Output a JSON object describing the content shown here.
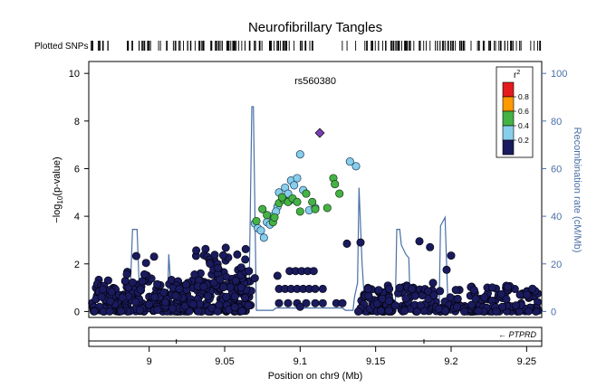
{
  "chart_data": {
    "type": "scatter",
    "title": "Neurofibrillary Tangles",
    "snp_track_label": "Plotted SNPs",
    "lead_snp_label": "rs560380",
    "xlabel": "Position on chr9 (Mb)",
    "ylabel_prefix": "−log",
    "ylabel_sub": "10",
    "ylabel_suffix": "(p-value)",
    "y2label": "Recombination rate (cM/Mb)",
    "xlim": [
      8.96,
      9.26
    ],
    "ylim": [
      -0.25,
      10.5
    ],
    "y2lim": [
      -2.5,
      105
    ],
    "x_ticks": [
      "9",
      "9.05",
      "9.1",
      "9.15",
      "9.2",
      "9.25"
    ],
    "x_tick_values": [
      9.0,
      9.05,
      9.1,
      9.15,
      9.2,
      9.25
    ],
    "y_ticks": [
      "0",
      "2",
      "4",
      "6",
      "8",
      "10"
    ],
    "y_tick_values": [
      0,
      2,
      4,
      6,
      8,
      10
    ],
    "y2_ticks": [
      "0",
      "20",
      "40",
      "60",
      "80",
      "100"
    ],
    "y2_tick_values": [
      0,
      20,
      40,
      60,
      80,
      100
    ],
    "legend": {
      "title_r": "r",
      "title_sup": "2",
      "labels": [
        "0.8",
        "0.6",
        "0.4",
        "0.2"
      ],
      "label_values": [
        0.8,
        0.6,
        0.4,
        0.2
      ],
      "colors": [
        "#e41a1c",
        "#ff9900",
        "#44b244",
        "#87ceeb",
        "#1a1a5e"
      ],
      "placement": "top-right"
    },
    "gene_label": "PTPRD",
    "gene_direction": "reverse",
    "colors": {
      "axis": "#000000",
      "y2axis": "#4a6fa5",
      "recomb_line": "#4a6fa5",
      "lead": "#7b3fb5",
      "ld_high": "#44b244",
      "ld_mid": "#87ceeb",
      "ld_low": "#1a1a5e"
    },
    "lead_snp": {
      "x": 9.113,
      "y": 7.5,
      "r2": 1.0
    },
    "green_points": [
      [
        9.075,
        4.3
      ],
      [
        9.078,
        4.05
      ],
      [
        9.082,
        3.75
      ],
      [
        9.083,
        3.95
      ],
      [
        9.086,
        4.55
      ],
      [
        9.089,
        4.7
      ],
      [
        9.092,
        4.6
      ],
      [
        9.095,
        4.75
      ],
      [
        9.098,
        4.6
      ],
      [
        9.1,
        4.2
      ],
      [
        9.104,
        4.95
      ],
      [
        9.108,
        4.6
      ],
      [
        9.11,
        4.3
      ],
      [
        9.118,
        4.35
      ],
      [
        9.122,
        5.6
      ],
      [
        9.123,
        5.35
      ],
      [
        9.126,
        4.95
      ],
      [
        9.088,
        4.8
      ],
      [
        9.071,
        3.8
      ]
    ],
    "lightblue_points": [
      [
        9.07,
        3.7
      ],
      [
        9.072,
        3.5
      ],
      [
        9.074,
        3.4
      ],
      [
        9.076,
        3.1
      ],
      [
        9.078,
        3.75
      ],
      [
        9.08,
        3.65
      ],
      [
        9.082,
        4.0
      ],
      [
        9.085,
        4.4
      ],
      [
        9.086,
        5.0
      ],
      [
        9.09,
        5.2
      ],
      [
        9.092,
        4.95
      ],
      [
        9.094,
        5.5
      ],
      [
        9.096,
        5.3
      ],
      [
        9.098,
        5.6
      ],
      [
        9.1,
        6.6
      ],
      [
        9.102,
        5.1
      ],
      [
        9.106,
        4.25
      ],
      [
        9.11,
        4.35
      ],
      [
        9.133,
        6.3
      ],
      [
        9.137,
        6.1
      ],
      [
        9.084,
        4.2
      ],
      [
        9.093,
        4.65
      ]
    ],
    "navy_points": [
      [
        9.14,
        2.9
      ],
      [
        9.131,
        2.85
      ],
      [
        9.179,
        2.95
      ],
      [
        9.186,
        2.7
      ],
      [
        9.2,
        2.35
      ],
      [
        9.197,
        1.75
      ],
      [
        9.188,
        1.2
      ],
      [
        9.066,
        1.7
      ],
      [
        9.07,
        1.4
      ],
      [
        9.061,
        1.85
      ],
      [
        9.085,
        1.5
      ],
      [
        9.093,
        1.7
      ],
      [
        9.097,
        1.7
      ],
      [
        9.101,
        1.7
      ],
      [
        9.105,
        1.7
      ],
      [
        9.109,
        1.7
      ],
      [
        9.086,
        0.95
      ],
      [
        9.09,
        0.95
      ],
      [
        9.094,
        0.95
      ],
      [
        9.098,
        0.95
      ],
      [
        9.102,
        0.95
      ],
      [
        9.106,
        0.95
      ],
      [
        9.11,
        0.95
      ],
      [
        9.115,
        0.95
      ],
      [
        9.086,
        0.35
      ],
      [
        9.092,
        0.35
      ],
      [
        9.098,
        0.35
      ],
      [
        9.104,
        0.35
      ],
      [
        9.11,
        0.35
      ],
      [
        9.115,
        0.35
      ],
      [
        9.124,
        0.35
      ],
      [
        9.128,
        0.35
      ],
      [
        9.145,
        0.95
      ],
      [
        9.152,
        0.9
      ],
      [
        9.159,
        0.95
      ],
      [
        9.166,
        1.0
      ],
      [
        9.17,
        0.55
      ],
      [
        9.174,
        0.95
      ],
      [
        9.02,
        0.95
      ],
      [
        9.1,
        0.2
      ]
    ],
    "dense_navy_ranges": [
      {
        "x0": 8.962,
        "x1": 9.068,
        "ymin": 0.0,
        "ymax": 1.35,
        "n": 340
      },
      {
        "x0": 8.985,
        "x1": 9.005,
        "ymin": 0.9,
        "ymax": 2.8,
        "n": 12
      },
      {
        "x0": 9.03,
        "x1": 9.065,
        "ymin": 1.0,
        "ymax": 2.8,
        "n": 60
      },
      {
        "x0": 9.138,
        "x1": 9.258,
        "ymin": 0.0,
        "ymax": 1.1,
        "n": 260
      }
    ],
    "recombination_rate": [
      [
        8.96,
        0.5
      ],
      [
        8.987,
        0.5
      ],
      [
        8.989,
        34.5
      ],
      [
        8.992,
        34.5
      ],
      [
        8.994,
        0.5
      ],
      [
        9.012,
        0.5
      ],
      [
        9.013,
        24
      ],
      [
        9.015,
        3
      ],
      [
        9.017,
        0.5
      ],
      [
        9.066,
        0.5
      ],
      [
        9.068,
        86
      ],
      [
        9.069,
        86
      ],
      [
        9.071,
        0.5
      ],
      [
        9.074,
        0.5
      ],
      [
        9.082,
        0.5
      ],
      [
        9.084,
        1.5
      ],
      [
        9.128,
        1.5
      ],
      [
        9.13,
        0.5
      ],
      [
        9.135,
        0.5
      ],
      [
        9.136,
        6
      ],
      [
        9.138,
        12
      ],
      [
        9.139,
        52
      ],
      [
        9.141,
        20
      ],
      [
        9.143,
        0.5
      ],
      [
        9.163,
        0.5
      ],
      [
        9.164,
        34.5
      ],
      [
        9.166,
        34.5
      ],
      [
        9.167,
        28
      ],
      [
        9.17,
        24
      ],
      [
        9.172,
        22.5
      ],
      [
        9.173,
        0.5
      ],
      [
        9.192,
        0.5
      ],
      [
        9.193,
        36
      ],
      [
        9.196,
        39.5
      ],
      [
        9.198,
        0.5
      ],
      [
        9.26,
        0.5
      ]
    ],
    "gene_x_range": [
      8.96,
      9.26
    ],
    "gene_ticks": [
      9.018,
      9.182
    ],
    "snp_track_gap_ranges": [
      [
        9.108,
        9.125
      ],
      [
        9.126,
        9.143
      ]
    ]
  }
}
